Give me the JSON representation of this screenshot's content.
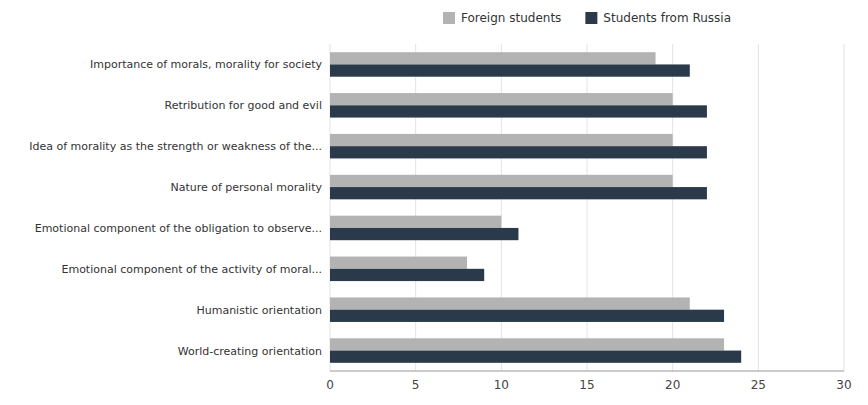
{
  "chart_data": {
    "type": "bar",
    "orientation": "horizontal",
    "categories": [
      "World-creating orientation",
      "Humanistic orientation",
      "Emotional component of the activity of moral...",
      "Emotional component of the obligation to observe...",
      "Nature of personal morality",
      "Idea of morality as the strength or weakness of the...",
      "Retribution for good and evil",
      "Importance of morals, morality for society"
    ],
    "series": [
      {
        "name": "Foreign students",
        "color": "#b3b3b3",
        "values": [
          23,
          21,
          8,
          10,
          20,
          20,
          20,
          19
        ]
      },
      {
        "name": "Students from Russia",
        "color": "#2b3a4a",
        "values": [
          24,
          23,
          9,
          11,
          22,
          22,
          22,
          21
        ]
      }
    ],
    "xlim": [
      0,
      30
    ],
    "xticks": [
      0,
      5,
      10,
      15,
      20,
      25,
      30
    ],
    "grid": true,
    "legend": "top"
  }
}
